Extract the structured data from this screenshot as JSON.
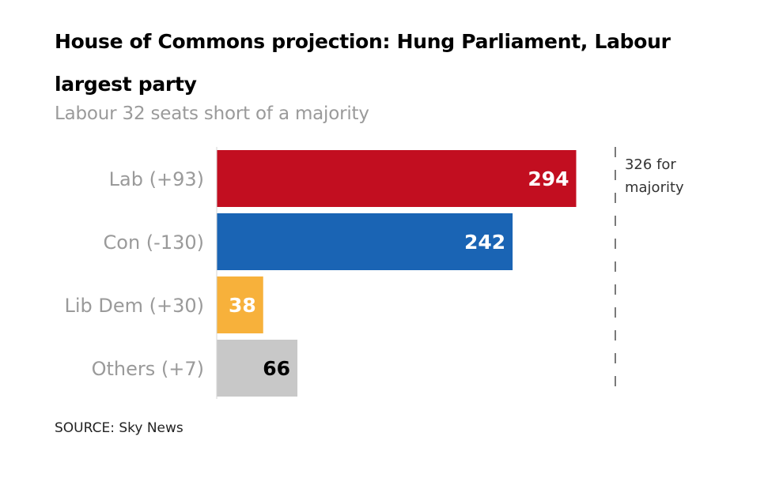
{
  "header": {
    "title": "House of Commons projection: Hung Parliament, Labour largest party",
    "subtitle": "Labour 32 seats short of a majority"
  },
  "footer": {
    "source": "SOURCE: Sky News"
  },
  "chart_data": {
    "type": "bar",
    "orientation": "horizontal",
    "title": "House of Commons projection: Hung Parliament, Labour largest party",
    "subtitle": "Labour 32 seats short of a majority",
    "categories": [
      "Lab (+93)",
      "Con (-130)",
      "Lib Dem (+30)",
      "Others (+7)"
    ],
    "values": [
      294,
      242,
      38,
      66
    ],
    "value_labels": [
      "294",
      "242",
      "38",
      "66"
    ],
    "colors": [
      "#c20e20",
      "#1a64b4",
      "#f7b13b",
      "#c8c8c8"
    ],
    "label_colors": [
      "#ffffff",
      "#ffffff",
      "#ffffff",
      "#000000"
    ],
    "xlabel": "",
    "ylabel": "",
    "xlim": [
      0,
      350
    ],
    "grid": false,
    "reference_line": {
      "value": 326,
      "label_lines": [
        "326 for",
        "majority"
      ],
      "style": "dashed"
    },
    "source": "SOURCE: Sky News"
  }
}
